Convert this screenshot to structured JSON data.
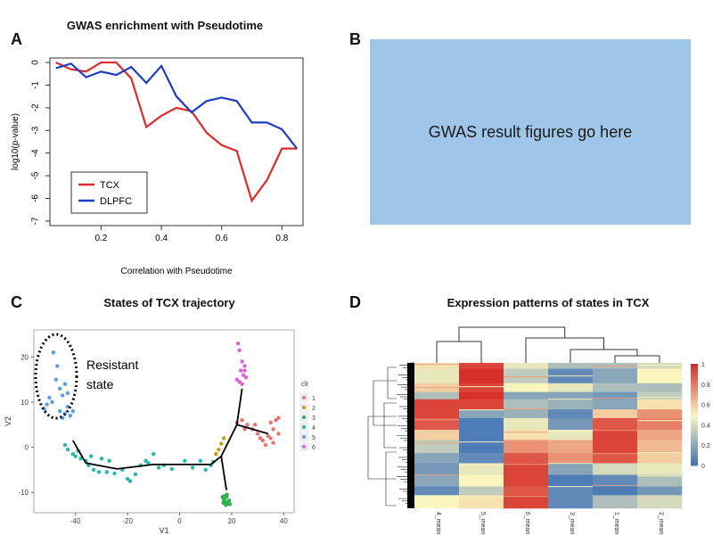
{
  "panels": {
    "A": {
      "letter": "A",
      "title": "GWAS enrichment with Pseudotime"
    },
    "B": {
      "letter": "B",
      "placeholder_text": "GWAS result figures go here"
    },
    "C": {
      "letter": "C",
      "title": "States of TCX trajectory",
      "annotation": [
        "Resistant",
        "state"
      ]
    },
    "D": {
      "letter": "D",
      "title": "Expression patterns of states in TCX"
    }
  },
  "chart_data": [
    {
      "id": "A",
      "type": "line",
      "title": "GWAS enrichment with Pseudotime",
      "xlabel": "Correlation with Pseudotime",
      "ylabel": "log10(p-value)",
      "xlim": [
        0.03,
        0.87
      ],
      "ylim": [
        -7.2,
        0.2
      ],
      "xticks": [
        0.2,
        0.4,
        0.6,
        0.8
      ],
      "yticks": [
        0,
        -1,
        -2,
        -3,
        -4,
        -5,
        -6,
        -7
      ],
      "legend": {
        "placement": "bottom-left",
        "entries": [
          "TCX",
          "DLPFC"
        ]
      },
      "series": [
        {
          "name": "TCX",
          "color": "#e02a2a",
          "x": [
            0.05,
            0.1,
            0.15,
            0.2,
            0.25,
            0.3,
            0.35,
            0.4,
            0.45,
            0.5,
            0.55,
            0.6,
            0.65,
            0.7,
            0.75,
            0.8,
            0.85
          ],
          "y": [
            0,
            -0.3,
            -0.4,
            0,
            0,
            -0.7,
            -2.85,
            -2.35,
            -2.0,
            -2.15,
            -3.1,
            -3.65,
            -3.9,
            -6.1,
            -5.2,
            -3.8,
            -3.8
          ]
        },
        {
          "name": "DLPFC",
          "color": "#1f3cc4",
          "x": [
            0.05,
            0.1,
            0.15,
            0.2,
            0.25,
            0.3,
            0.35,
            0.4,
            0.45,
            0.5,
            0.55,
            0.6,
            0.65,
            0.7,
            0.75,
            0.8,
            0.85
          ],
          "y": [
            -0.25,
            -0.05,
            -0.65,
            -0.4,
            -0.55,
            -0.2,
            -0.9,
            -0.15,
            -1.5,
            -2.2,
            -1.7,
            -1.55,
            -1.7,
            -2.65,
            -2.65,
            -2.95,
            -3.8
          ]
        }
      ]
    },
    {
      "id": "C",
      "type": "scatter",
      "title": "States of TCX trajectory",
      "xlabel": "V1",
      "ylabel": "V2",
      "xlim": [
        -56,
        44
      ],
      "ylim": [
        -14.5,
        26
      ],
      "xticks": [
        -40,
        -20,
        0,
        20,
        40
      ],
      "yticks": [
        -10,
        0,
        10,
        20
      ],
      "legend": {
        "title": "clr",
        "placement": "right",
        "entries": [
          "1",
          "2",
          "3",
          "4",
          "5",
          "6"
        ]
      },
      "state_colors": {
        "1": "#e8756b",
        "2": "#c2a01b",
        "3": "#2db24a",
        "4": "#27b9b0",
        "5": "#5b9fdb",
        "6": "#dd62d8"
      },
      "trajectory": [
        [
          -41,
          1.5
        ],
        [
          -36,
          -3.5
        ],
        [
          -24,
          -4.8
        ],
        [
          -10,
          -3.8
        ],
        [
          0,
          -3.8
        ],
        [
          12,
          -3.8
        ],
        [
          16,
          -2
        ],
        [
          22,
          5
        ],
        [
          24,
          13
        ]
      ],
      "branches": [
        [
          [
            22,
            5
          ],
          [
            34,
            3
          ]
        ],
        [
          [
            16,
            -2
          ],
          [
            18,
            -9.5
          ]
        ]
      ],
      "points": [
        {
          "x": -52,
          "y": 8.5,
          "s": "5"
        },
        {
          "x": -51,
          "y": 9.5,
          "s": "5"
        },
        {
          "x": -50,
          "y": 11,
          "s": "5"
        },
        {
          "x": -48.5,
          "y": 21,
          "s": "5"
        },
        {
          "x": -47,
          "y": 18,
          "s": "5"
        },
        {
          "x": -47.5,
          "y": 15,
          "s": "5"
        },
        {
          "x": -46,
          "y": 13,
          "s": "5"
        },
        {
          "x": -45,
          "y": 11.5,
          "s": "5"
        },
        {
          "x": -44,
          "y": 14,
          "s": "5"
        },
        {
          "x": -43,
          "y": 12,
          "s": "5"
        },
        {
          "x": -46,
          "y": 8,
          "s": "5"
        },
        {
          "x": -44,
          "y": 7.5,
          "s": "5"
        },
        {
          "x": -42,
          "y": 7,
          "s": "5"
        },
        {
          "x": -43,
          "y": 9,
          "s": "5"
        },
        {
          "x": -49,
          "y": 10,
          "s": "5"
        },
        {
          "x": -45,
          "y": 6.5,
          "s": "5"
        },
        {
          "x": -41,
          "y": 8,
          "s": "5"
        },
        {
          "x": -44,
          "y": 0.5,
          "s": "4"
        },
        {
          "x": -43,
          "y": -0.5,
          "s": "4"
        },
        {
          "x": -41,
          "y": -1.5,
          "s": "4"
        },
        {
          "x": -40,
          "y": -2,
          "s": "4"
        },
        {
          "x": -38,
          "y": -2.5,
          "s": "4"
        },
        {
          "x": -36,
          "y": -3,
          "s": "4"
        },
        {
          "x": -35,
          "y": -4,
          "s": "4"
        },
        {
          "x": -33,
          "y": -5,
          "s": "4"
        },
        {
          "x": -31,
          "y": -5.5,
          "s": "4"
        },
        {
          "x": -30,
          "y": -2.5,
          "s": "4"
        },
        {
          "x": -28,
          "y": -5.5,
          "s": "4"
        },
        {
          "x": -27,
          "y": -3,
          "s": "4"
        },
        {
          "x": -25,
          "y": -5.8,
          "s": "4"
        },
        {
          "x": -22,
          "y": -5,
          "s": "4"
        },
        {
          "x": -20,
          "y": -7,
          "s": "4"
        },
        {
          "x": -19,
          "y": -7.5,
          "s": "4"
        },
        {
          "x": -17,
          "y": -6,
          "s": "4"
        },
        {
          "x": -15,
          "y": -4,
          "s": "4"
        },
        {
          "x": -13,
          "y": -3,
          "s": "4"
        },
        {
          "x": -12,
          "y": -3.5,
          "s": "4"
        },
        {
          "x": -10,
          "y": -1.5,
          "s": "4"
        },
        {
          "x": -8,
          "y": -4.5,
          "s": "4"
        },
        {
          "x": -6,
          "y": -4,
          "s": "4"
        },
        {
          "x": -3,
          "y": -4.8,
          "s": "4"
        },
        {
          "x": 2,
          "y": -3,
          "s": "4"
        },
        {
          "x": 5,
          "y": -4.5,
          "s": "4"
        },
        {
          "x": 8,
          "y": -3,
          "s": "4"
        },
        {
          "x": 10,
          "y": -5,
          "s": "4"
        },
        {
          "x": 12,
          "y": -4,
          "s": "4"
        },
        {
          "x": 13,
          "y": -3.2,
          "s": "4"
        },
        {
          "x": -39,
          "y": -0.8,
          "s": "4"
        },
        {
          "x": -34,
          "y": -2,
          "s": "4"
        },
        {
          "x": 14,
          "y": -1.5,
          "s": "2"
        },
        {
          "x": 15,
          "y": -0.5,
          "s": "2"
        },
        {
          "x": 16,
          "y": 0.8,
          "s": "2"
        },
        {
          "x": 17,
          "y": 2,
          "s": "2"
        },
        {
          "x": 16.5,
          "y": -11,
          "s": "3"
        },
        {
          "x": 17,
          "y": -11.5,
          "s": "3"
        },
        {
          "x": 17.5,
          "y": -12,
          "s": "3"
        },
        {
          "x": 18,
          "y": -11,
          "s": "3"
        },
        {
          "x": 18.5,
          "y": -12.5,
          "s": "3"
        },
        {
          "x": 19,
          "y": -11.8,
          "s": "3"
        },
        {
          "x": 17.8,
          "y": -12.8,
          "s": "3"
        },
        {
          "x": 16.8,
          "y": -12.3,
          "s": "3"
        },
        {
          "x": 19.3,
          "y": -12.6,
          "s": "3"
        },
        {
          "x": 18.2,
          "y": -10.5,
          "s": "3"
        },
        {
          "x": 17.2,
          "y": -10.8,
          "s": "3"
        },
        {
          "x": 22,
          "y": 5.5,
          "s": "1"
        },
        {
          "x": 24,
          "y": 6,
          "s": "1"
        },
        {
          "x": 26,
          "y": 5,
          "s": "1"
        },
        {
          "x": 28,
          "y": 4,
          "s": "1"
        },
        {
          "x": 30,
          "y": 3,
          "s": "1"
        },
        {
          "x": 31,
          "y": 2,
          "s": "1"
        },
        {
          "x": 32,
          "y": 1.5,
          "s": "1"
        },
        {
          "x": 34,
          "y": 2.5,
          "s": "1"
        },
        {
          "x": 35,
          "y": 5.5,
          "s": "1"
        },
        {
          "x": 36,
          "y": 4,
          "s": "1"
        },
        {
          "x": 37,
          "y": 6,
          "s": "1"
        },
        {
          "x": 38,
          "y": 3,
          "s": "1"
        },
        {
          "x": 33,
          "y": 0.5,
          "s": "1"
        },
        {
          "x": 36,
          "y": 1,
          "s": "1"
        },
        {
          "x": 38,
          "y": 6.5,
          "s": "1"
        },
        {
          "x": 29,
          "y": 5,
          "s": "1"
        },
        {
          "x": 25,
          "y": 4,
          "s": "1"
        },
        {
          "x": 35,
          "y": 2,
          "s": "1"
        },
        {
          "x": 22.5,
          "y": 23,
          "s": "6"
        },
        {
          "x": 23,
          "y": 21.5,
          "s": "6"
        },
        {
          "x": 24,
          "y": 19,
          "s": "6"
        },
        {
          "x": 25,
          "y": 18,
          "s": "6"
        },
        {
          "x": 23.5,
          "y": 17,
          "s": "6"
        },
        {
          "x": 24.5,
          "y": 16,
          "s": "6"
        },
        {
          "x": 22,
          "y": 15,
          "s": "6"
        },
        {
          "x": 25.5,
          "y": 15.5,
          "s": "6"
        },
        {
          "x": 23,
          "y": 14.5,
          "s": "6"
        },
        {
          "x": 24,
          "y": 14,
          "s": "6"
        },
        {
          "x": 25,
          "y": 17,
          "s": "6"
        }
      ]
    },
    {
      "id": "D",
      "type": "heatmap",
      "title": "Expression patterns of states in TCX",
      "columns": [
        "4_mean",
        "5_mean",
        "6_mean",
        "3_mean",
        "1_mean",
        "2_mean"
      ],
      "colorbar": {
        "range": [
          0,
          1
        ],
        "ticks": [
          0,
          0.2,
          0.4,
          0.6,
          0.8,
          1
        ],
        "low": "#3b6fb6",
        "mid": "#fbf5be",
        "high": "#d7302a"
      },
      "dendrogram_order": "((4_mean,5_mean),(6_mean,(3_mean,(1_mean,2_mean))))",
      "row_blocks": [
        {
          "f": 0.04,
          "v": [
            0.55,
            0.95,
            0.45,
            0.3,
            0.3,
            0.4
          ]
        },
        {
          "f": 0.1,
          "v": [
            0.45,
            1.0,
            0.35,
            0.1,
            0.2,
            0.5
          ]
        },
        {
          "f": 0.06,
          "v": [
            0.6,
            0.95,
            0.5,
            0.45,
            0.3,
            0.3
          ]
        },
        {
          "f": 0.05,
          "v": [
            0.3,
            1.0,
            0.2,
            0.2,
            0.15,
            0.35
          ]
        },
        {
          "f": 0.07,
          "v": [
            0.95,
            0.95,
            0.3,
            0.25,
            0.2,
            0.55
          ]
        },
        {
          "f": 0.06,
          "v": [
            0.95,
            0.2,
            0.25,
            0.1,
            0.6,
            0.75
          ]
        },
        {
          "f": 0.08,
          "v": [
            0.9,
            0.05,
            0.45,
            0.15,
            0.9,
            0.8
          ]
        },
        {
          "f": 0.07,
          "v": [
            0.6,
            0.05,
            0.55,
            0.45,
            0.95,
            0.7
          ]
        },
        {
          "f": 0.09,
          "v": [
            0.35,
            0.05,
            0.75,
            0.7,
            0.95,
            0.65
          ]
        },
        {
          "f": 0.07,
          "v": [
            0.2,
            0.1,
            0.9,
            0.75,
            0.9,
            0.6
          ]
        },
        {
          "f": 0.08,
          "v": [
            0.15,
            0.45,
            0.95,
            0.2,
            0.4,
            0.45
          ]
        },
        {
          "f": 0.08,
          "v": [
            0.2,
            0.5,
            0.95,
            0.05,
            0.1,
            0.3
          ]
        },
        {
          "f": 0.06,
          "v": [
            0.1,
            0.35,
            0.9,
            0.1,
            0.05,
            0.15
          ]
        },
        {
          "f": 0.09,
          "v": [
            0.5,
            0.55,
            0.95,
            0.1,
            0.3,
            0.4
          ]
        }
      ]
    }
  ]
}
